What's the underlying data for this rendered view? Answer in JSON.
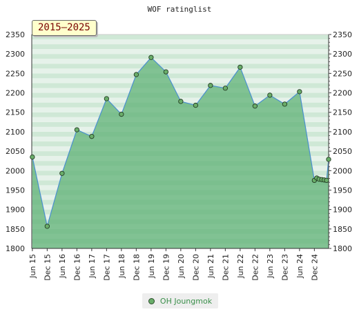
{
  "chart_data": {
    "type": "line",
    "title": "WOF ratinglist",
    "badge": "2015–2025",
    "ylim": [
      1800,
      2350
    ],
    "yticks": [
      1800,
      1850,
      1900,
      1950,
      2000,
      2050,
      2100,
      2150,
      2200,
      2250,
      2300,
      2350
    ],
    "xlim": [
      2015.4,
      2025.4
    ],
    "xticks": [
      {
        "label": "Jun 15",
        "x": 2015.42
      },
      {
        "label": "Dec 15",
        "x": 2015.92
      },
      {
        "label": "Jun 16",
        "x": 2016.42
      },
      {
        "label": "Dec 16",
        "x": 2016.92
      },
      {
        "label": "Jun 17",
        "x": 2017.42
      },
      {
        "label": "Dec 17",
        "x": 2017.92
      },
      {
        "label": "Jun 18",
        "x": 2018.42
      },
      {
        "label": "Dec 18",
        "x": 2018.92
      },
      {
        "label": "Jun 19",
        "x": 2019.42
      },
      {
        "label": "Dec 19",
        "x": 2019.92
      },
      {
        "label": "Jun 20",
        "x": 2020.42
      },
      {
        "label": "Dec 20",
        "x": 2020.92
      },
      {
        "label": "Jun 21",
        "x": 2021.42
      },
      {
        "label": "Dec 21",
        "x": 2021.92
      },
      {
        "label": "Jun 22",
        "x": 2022.42
      },
      {
        "label": "Dec 22",
        "x": 2022.92
      },
      {
        "label": "Jun 23",
        "x": 2023.42
      },
      {
        "label": "Dec 23",
        "x": 2023.92
      },
      {
        "label": "Jun 24",
        "x": 2024.42
      },
      {
        "label": "Dec 24",
        "x": 2024.92
      }
    ],
    "series": [
      {
        "name": "OH Joungmok",
        "x": [
          2015.42,
          2015.92,
          2016.42,
          2016.92,
          2017.42,
          2017.92,
          2018.42,
          2018.92,
          2019.42,
          2019.92,
          2020.42,
          2020.92,
          2021.42,
          2021.92,
          2022.42,
          2022.92,
          2023.42,
          2023.92,
          2024.42,
          2024.92,
          2025.0,
          2025.08,
          2025.17,
          2025.25,
          2025.33,
          2025.4
        ],
        "y": [
          2035,
          1857,
          1993,
          2105,
          2088,
          2185,
          2145,
          2247,
          2291,
          2254,
          2178,
          2168,
          2219,
          2212,
          2266,
          2166,
          2194,
          2171,
          2203,
          1975,
          1981,
          1978,
          1977,
          1976,
          1975,
          2029
        ]
      }
    ],
    "grid": true,
    "legend_position": "bottom-center"
  }
}
